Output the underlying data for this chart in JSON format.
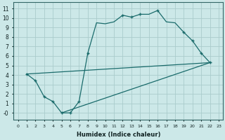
{
  "xlabel": "Humidex (Indice chaleur)",
  "bg_color": "#cce8e8",
  "grid_color": "#aacccc",
  "line_color": "#1a6b6b",
  "xlim": [
    -0.5,
    23.5
  ],
  "ylim": [
    -0.7,
    11.7
  ],
  "xticks": [
    0,
    1,
    2,
    3,
    4,
    5,
    6,
    7,
    8,
    9,
    10,
    11,
    12,
    13,
    14,
    15,
    16,
    17,
    18,
    19,
    20,
    21,
    22,
    23
  ],
  "yticks": [
    0,
    1,
    2,
    3,
    4,
    5,
    6,
    7,
    8,
    9,
    10,
    11
  ],
  "ytick_labels": [
    "-0",
    "1",
    "2",
    "3",
    "4",
    "5",
    "6",
    "7",
    "8",
    "9",
    "10",
    "11"
  ],
  "curve1_x": [
    1,
    2,
    3,
    4,
    5,
    6,
    7,
    8,
    9,
    10,
    11,
    12,
    13,
    14,
    15,
    16,
    17,
    18,
    19,
    20,
    21,
    22
  ],
  "curve1_y": [
    4.1,
    3.4,
    1.7,
    1.2,
    0.0,
    0.0,
    1.2,
    6.3,
    9.5,
    9.4,
    9.6,
    10.3,
    10.1,
    10.4,
    10.4,
    10.8,
    9.6,
    9.5,
    8.5,
    7.6,
    6.3,
    5.3
  ],
  "curve1_marker_x": [
    1,
    2,
    3,
    4,
    5,
    6,
    7,
    8,
    12,
    13,
    14,
    16,
    19,
    20,
    21,
    22
  ],
  "curve1_marker_y": [
    4.1,
    3.4,
    1.7,
    1.2,
    0.0,
    0.0,
    1.2,
    6.3,
    10.3,
    10.1,
    10.4,
    10.8,
    8.5,
    7.6,
    6.3,
    5.3
  ],
  "line2_x": [
    1,
    22
  ],
  "line2_y": [
    4.1,
    5.3
  ],
  "line3_x": [
    5,
    22
  ],
  "line3_y": [
    0.0,
    5.3
  ],
  "line4_x": [
    1,
    22
  ],
  "line4_y": [
    4.1,
    5.3
  ]
}
